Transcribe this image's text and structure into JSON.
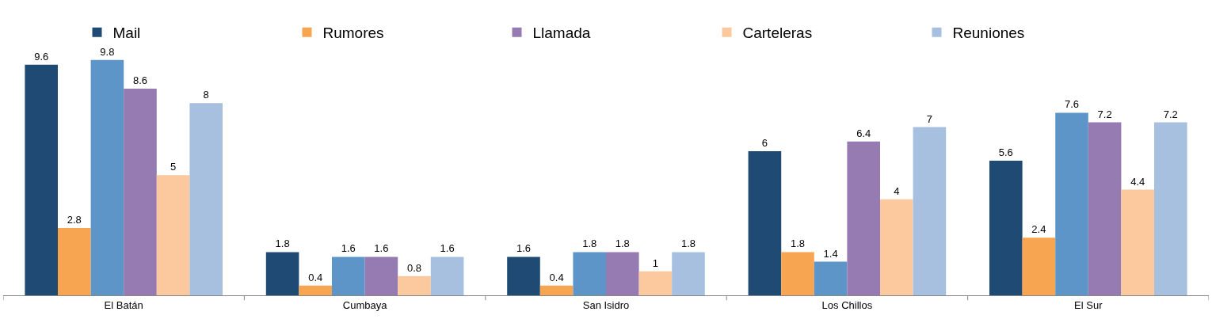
{
  "chart_data": {
    "type": "bar",
    "categories": [
      "El Batán",
      "Cumbaya",
      "San Isidro",
      "Los Chillos",
      "El Sur"
    ],
    "series": [
      {
        "name": "Mail",
        "color": "#1f4a73",
        "values": [
          9.6,
          1.8,
          1.6,
          6,
          5.6
        ]
      },
      {
        "name": "Rumores",
        "color": "#f8a552",
        "values": [
          2.8,
          0.4,
          0.4,
          1.8,
          2.4
        ]
      },
      {
        "color": "#5e95c9",
        "values": [
          9.8,
          1.6,
          1.8,
          1.4,
          7.6
        ]
      },
      {
        "name": "Llamada",
        "color": "#957bb1",
        "values": [
          8.6,
          1.6,
          1.8,
          6.4,
          7.2
        ]
      },
      {
        "name": "Carteleras",
        "color": "#fbc99d",
        "values": [
          5,
          0.8,
          1,
          4,
          4.4
        ]
      },
      {
        "name": "Reuniones",
        "color": "#a7c0df",
        "values": [
          8,
          1.6,
          1.8,
          7,
          7.2
        ]
      }
    ],
    "data_labels": true,
    "legend": "top"
  }
}
